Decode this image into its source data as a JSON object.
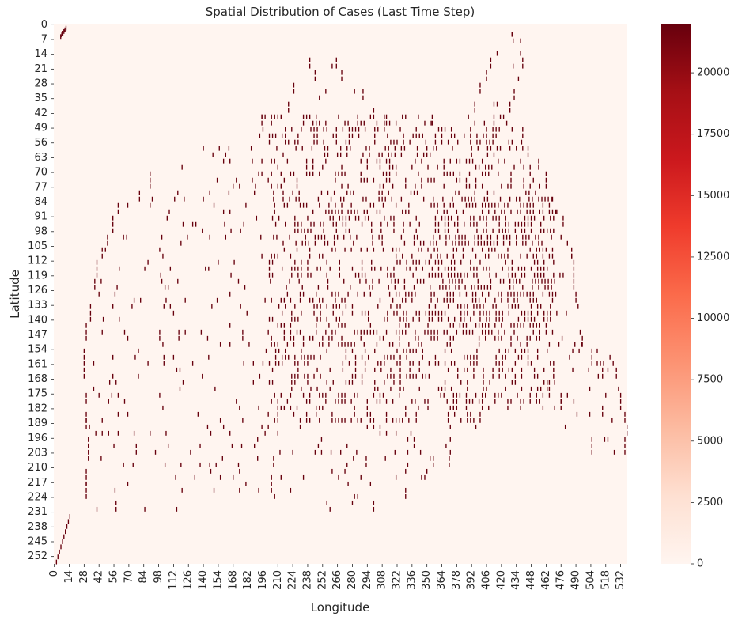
{
  "chart_data": {
    "type": "heatmap",
    "title": "Spatial Distribution of Cases (Last Time Step)",
    "xlabel": "Longitude",
    "ylabel": "Latitude",
    "x_tick_labels": [
      "0",
      "14",
      "28",
      "42",
      "56",
      "70",
      "84",
      "98",
      "112",
      "126",
      "140",
      "154",
      "168",
      "182",
      "196",
      "210",
      "224",
      "238",
      "252",
      "266",
      "280",
      "294",
      "308",
      "322",
      "336",
      "350",
      "364",
      "378",
      "392",
      "406",
      "420",
      "434",
      "448",
      "462",
      "476",
      "490",
      "504",
      "518",
      "532"
    ],
    "y_tick_labels": [
      "0",
      "7",
      "14",
      "21",
      "28",
      "35",
      "42",
      "49",
      "56",
      "63",
      "70",
      "77",
      "84",
      "91",
      "98",
      "105",
      "112",
      "119",
      "126",
      "133",
      "140",
      "147",
      "154",
      "161",
      "168",
      "175",
      "182",
      "189",
      "196",
      "203",
      "210",
      "217",
      "224",
      "231",
      "238",
      "245",
      "252"
    ],
    "x_range": [
      0,
      538
    ],
    "y_range": [
      0,
      256
    ],
    "colorbar": {
      "min": 0,
      "max": 22000,
      "ticks": [
        "0",
        "2500",
        "5000",
        "7500",
        "10000",
        "12500",
        "15000",
        "17500",
        "20000"
      ],
      "colormap": "Reds",
      "low_color": "#fff5f0",
      "high_color": "#67000d"
    },
    "background_value": 0,
    "hotspot_value": 22000,
    "grid": false,
    "description": "Sparse grid of hotspot cells (approximately the maximum value) forming the outline of a country shape; all other cells are zero."
  }
}
